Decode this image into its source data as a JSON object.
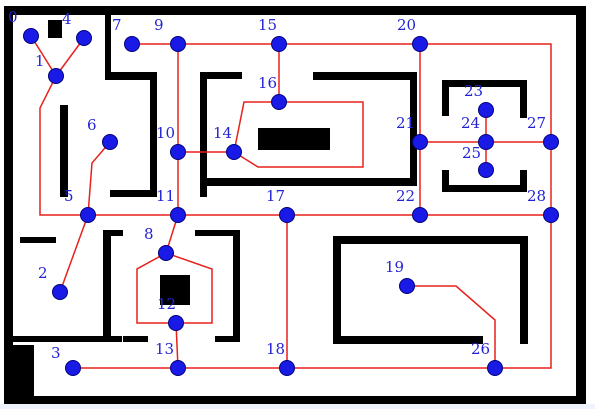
{
  "colors": {
    "wall": "#000000",
    "edge": "#e8211c",
    "node_fill": "#1a1ae6",
    "node_stroke": "#00007a",
    "label": "#2323d6",
    "bottom_strip": "#eef3fb"
  },
  "nodes": [
    {
      "id": "0",
      "label": "0"
    },
    {
      "id": "1",
      "label": "1"
    },
    {
      "id": "2",
      "label": "2"
    },
    {
      "id": "3",
      "label": "3"
    },
    {
      "id": "4",
      "label": "4"
    },
    {
      "id": "5",
      "label": "5"
    },
    {
      "id": "6",
      "label": "6"
    },
    {
      "id": "7",
      "label": "7"
    },
    {
      "id": "8",
      "label": "8"
    },
    {
      "id": "9",
      "label": "9"
    },
    {
      "id": "10",
      "label": "10"
    },
    {
      "id": "11",
      "label": "11"
    },
    {
      "id": "12",
      "label": "12"
    },
    {
      "id": "13",
      "label": "13"
    },
    {
      "id": "14",
      "label": "14"
    },
    {
      "id": "15",
      "label": "15"
    },
    {
      "id": "16",
      "label": "16"
    },
    {
      "id": "17",
      "label": "17"
    },
    {
      "id": "18",
      "label": "18"
    },
    {
      "id": "19",
      "label": "19"
    },
    {
      "id": "20",
      "label": "20"
    },
    {
      "id": "21",
      "label": "21"
    },
    {
      "id": "22",
      "label": "22"
    },
    {
      "id": "23",
      "label": "23"
    },
    {
      "id": "24",
      "label": "24"
    },
    {
      "id": "25",
      "label": "25"
    },
    {
      "id": "26",
      "label": "26"
    },
    {
      "id": "27",
      "label": "27"
    },
    {
      "id": "28",
      "label": "28"
    }
  ],
  "edges": [
    [
      "0",
      "1"
    ],
    [
      "4",
      "1"
    ],
    [
      "1",
      "5"
    ],
    [
      "5",
      "6"
    ],
    [
      "5",
      "2"
    ],
    [
      "5",
      "11"
    ],
    [
      "7",
      "9"
    ],
    [
      "9",
      "15"
    ],
    [
      "15",
      "20"
    ],
    [
      "20",
      "27"
    ],
    [
      "9",
      "10"
    ],
    [
      "10",
      "11"
    ],
    [
      "10",
      "14"
    ],
    [
      "15",
      "16"
    ],
    [
      "16",
      "14"
    ],
    [
      "14",
      "16"
    ],
    [
      "11",
      "8"
    ],
    [
      "8",
      "12"
    ],
    [
      "12",
      "13"
    ],
    [
      "11",
      "17"
    ],
    [
      "17",
      "22"
    ],
    [
      "20",
      "21"
    ],
    [
      "21",
      "22"
    ],
    [
      "21",
      "24"
    ],
    [
      "24",
      "23"
    ],
    [
      "24",
      "25"
    ],
    [
      "24",
      "27"
    ],
    [
      "27",
      "28"
    ],
    [
      "22",
      "28"
    ],
    [
      "17",
      "18"
    ],
    [
      "3",
      "13"
    ],
    [
      "13",
      "18"
    ],
    [
      "18",
      "26"
    ],
    [
      "19",
      "26"
    ],
    [
      "26",
      "28"
    ]
  ]
}
